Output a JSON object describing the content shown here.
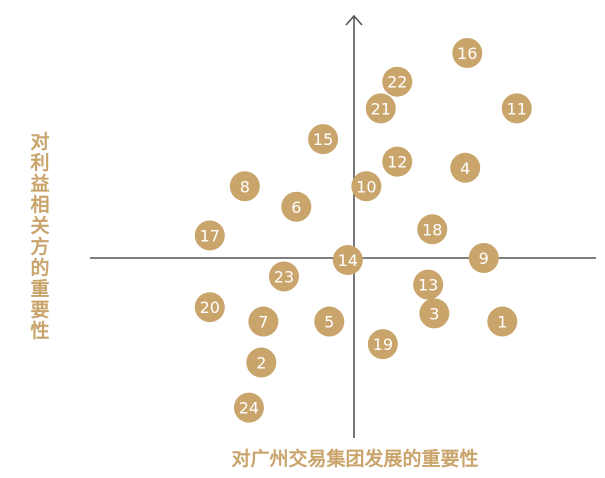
{
  "chart_data": {
    "type": "scatter",
    "title": "",
    "xlabel": "对广州交易集团发展的重要性",
    "ylabel": "对利益相关方的重要性",
    "xlim": [
      -10,
      10
    ],
    "ylim": [
      -10,
      10
    ],
    "grid": false,
    "legend": "none",
    "marker_color": "#c9a46b",
    "label_color": "#ffffff",
    "axis_color": "#555555",
    "points": [
      {
        "label": "1",
        "x": 7.2,
        "y": -3.1
      },
      {
        "label": "2",
        "x": -4.5,
        "y": -5.1
      },
      {
        "label": "3",
        "x": 3.9,
        "y": -2.7
      },
      {
        "label": "4",
        "x": 5.4,
        "y": 4.4
      },
      {
        "label": "5",
        "x": -1.2,
        "y": -3.1
      },
      {
        "label": "6",
        "x": -2.8,
        "y": 2.5
      },
      {
        "label": "7",
        "x": -4.4,
        "y": -3.1
      },
      {
        "label": "8",
        "x": -5.3,
        "y": 3.5
      },
      {
        "label": "9",
        "x": 6.3,
        "y": 0.0
      },
      {
        "label": "10",
        "x": 0.6,
        "y": 3.5
      },
      {
        "label": "11",
        "x": 7.9,
        "y": 7.3
      },
      {
        "label": "12",
        "x": 2.1,
        "y": 4.7
      },
      {
        "label": "13",
        "x": 3.6,
        "y": -1.3
      },
      {
        "label": "14",
        "x": -0.3,
        "y": -0.1
      },
      {
        "label": "15",
        "x": -1.5,
        "y": 5.8
      },
      {
        "label": "16",
        "x": 5.5,
        "y": 10.0
      },
      {
        "label": "17",
        "x": -7.0,
        "y": 1.1
      },
      {
        "label": "18",
        "x": 3.8,
        "y": 1.4
      },
      {
        "label": "19",
        "x": 1.4,
        "y": -4.2
      },
      {
        "label": "20",
        "x": -7.0,
        "y": -2.4
      },
      {
        "label": "21",
        "x": 1.3,
        "y": 7.3
      },
      {
        "label": "22",
        "x": 2.1,
        "y": 8.6
      },
      {
        "label": "23",
        "x": -3.4,
        "y": -0.9
      },
      {
        "label": "24",
        "x": -5.1,
        "y": -7.3
      }
    ]
  }
}
